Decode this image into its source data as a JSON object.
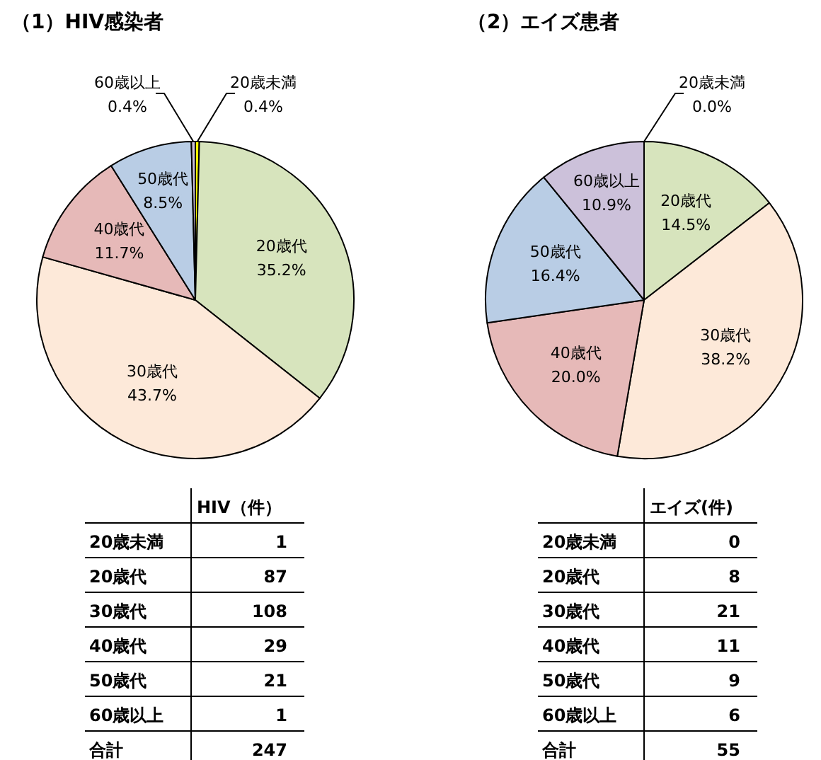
{
  "chart_data": [
    {
      "type": "pie",
      "title": "（1）HIV感染者",
      "categories": [
        "20歳未満",
        "20歳代",
        "30歳代",
        "40歳代",
        "50歳代",
        "60歳以上"
      ],
      "values": [
        0.4,
        35.2,
        43.7,
        11.7,
        8.5,
        0.4
      ],
      "colors": [
        "#ffff00",
        "#d7e4bd",
        "#fde9d9",
        "#e6b9b8",
        "#b9cde5",
        "#ccc1da"
      ],
      "value_labels": [
        "0.4%",
        "35.2%",
        "43.7%",
        "11.7%",
        "8.5%",
        "0.4%"
      ]
    },
    {
      "type": "pie",
      "title": "（2）エイズ患者",
      "categories": [
        "20歳未満",
        "20歳代",
        "30歳代",
        "40歳代",
        "50歳代",
        "60歳以上"
      ],
      "values": [
        0.0,
        14.5,
        38.2,
        20.0,
        16.4,
        10.9
      ],
      "colors": [
        "#ffff00",
        "#d7e4bd",
        "#fde9d9",
        "#e6b9b8",
        "#b9cde5",
        "#ccc1da"
      ],
      "value_labels": [
        "0.0%",
        "14.5%",
        "38.2%",
        "20.0%",
        "16.4%",
        "10.9%"
      ]
    },
    {
      "type": "heatmap",
      "categories": [
        "HIV（件）"
      ],
      "y_categories": [
        "20歳未満",
        "20歳代",
        "30歳代",
        "40歳代",
        "50歳代",
        "60歳以上",
        "合計"
      ],
      "cells": [
        [
          1
        ],
        [
          87
        ],
        [
          108
        ],
        [
          29
        ],
        [
          21
        ],
        [
          1
        ],
        [
          247
        ]
      ],
      "data_labels": true
    },
    {
      "type": "heatmap",
      "categories": [
        "エイズ(件)"
      ],
      "y_categories": [
        "20歳未満",
        "20歳代",
        "30歳代",
        "40歳代",
        "50歳代",
        "60歳以上",
        "合計"
      ],
      "cells": [
        [
          0
        ],
        [
          8
        ],
        [
          21
        ],
        [
          11
        ],
        [
          9
        ],
        [
          6
        ],
        [
          55
        ]
      ],
      "data_labels": true
    }
  ]
}
